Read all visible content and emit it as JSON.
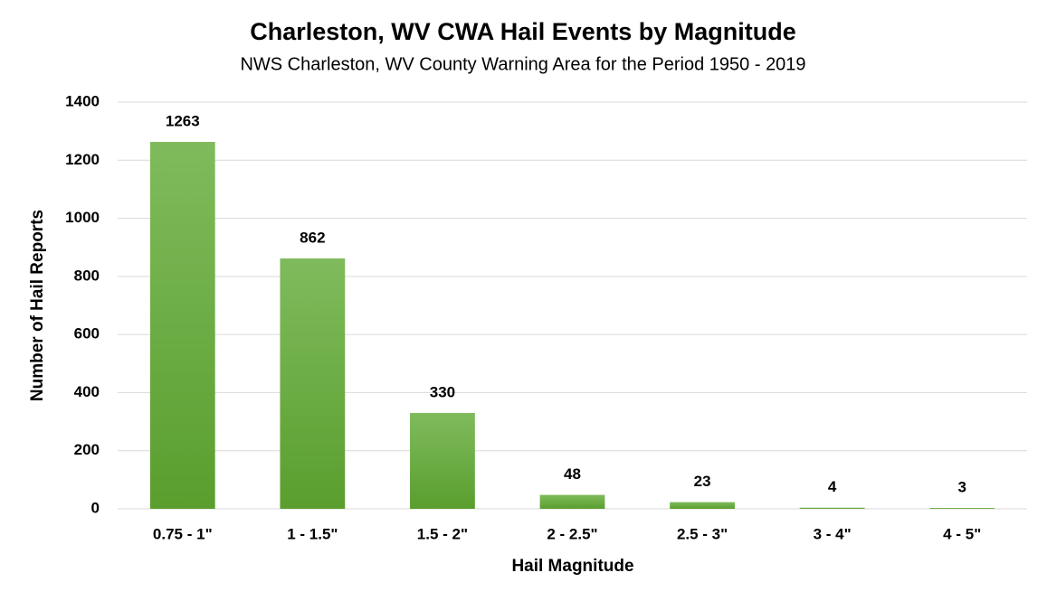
{
  "chart_data": {
    "type": "bar",
    "title": "Charleston, WV CWA Hail Events by Magnitude",
    "subtitle": "NWS Charleston, WV County Warning Area for the Period 1950 - 2019",
    "x_label": "Hail Magnitude",
    "y_label": "Number of Hail Reports",
    "categories": [
      "0.75 - 1\"",
      "1 - 1.5\"",
      "1.5 - 2\"",
      "2 - 2.5\"",
      "2.5 - 3\"",
      "3 - 4\"",
      "4 - 5\""
    ],
    "values": [
      1263,
      862,
      330,
      48,
      23,
      4,
      3
    ],
    "color": "#6db33f",
    "ylim": [
      0,
      1400
    ],
    "yticks": [
      0,
      200,
      400,
      600,
      800,
      1000,
      1200,
      1400
    ],
    "grid": true
  }
}
